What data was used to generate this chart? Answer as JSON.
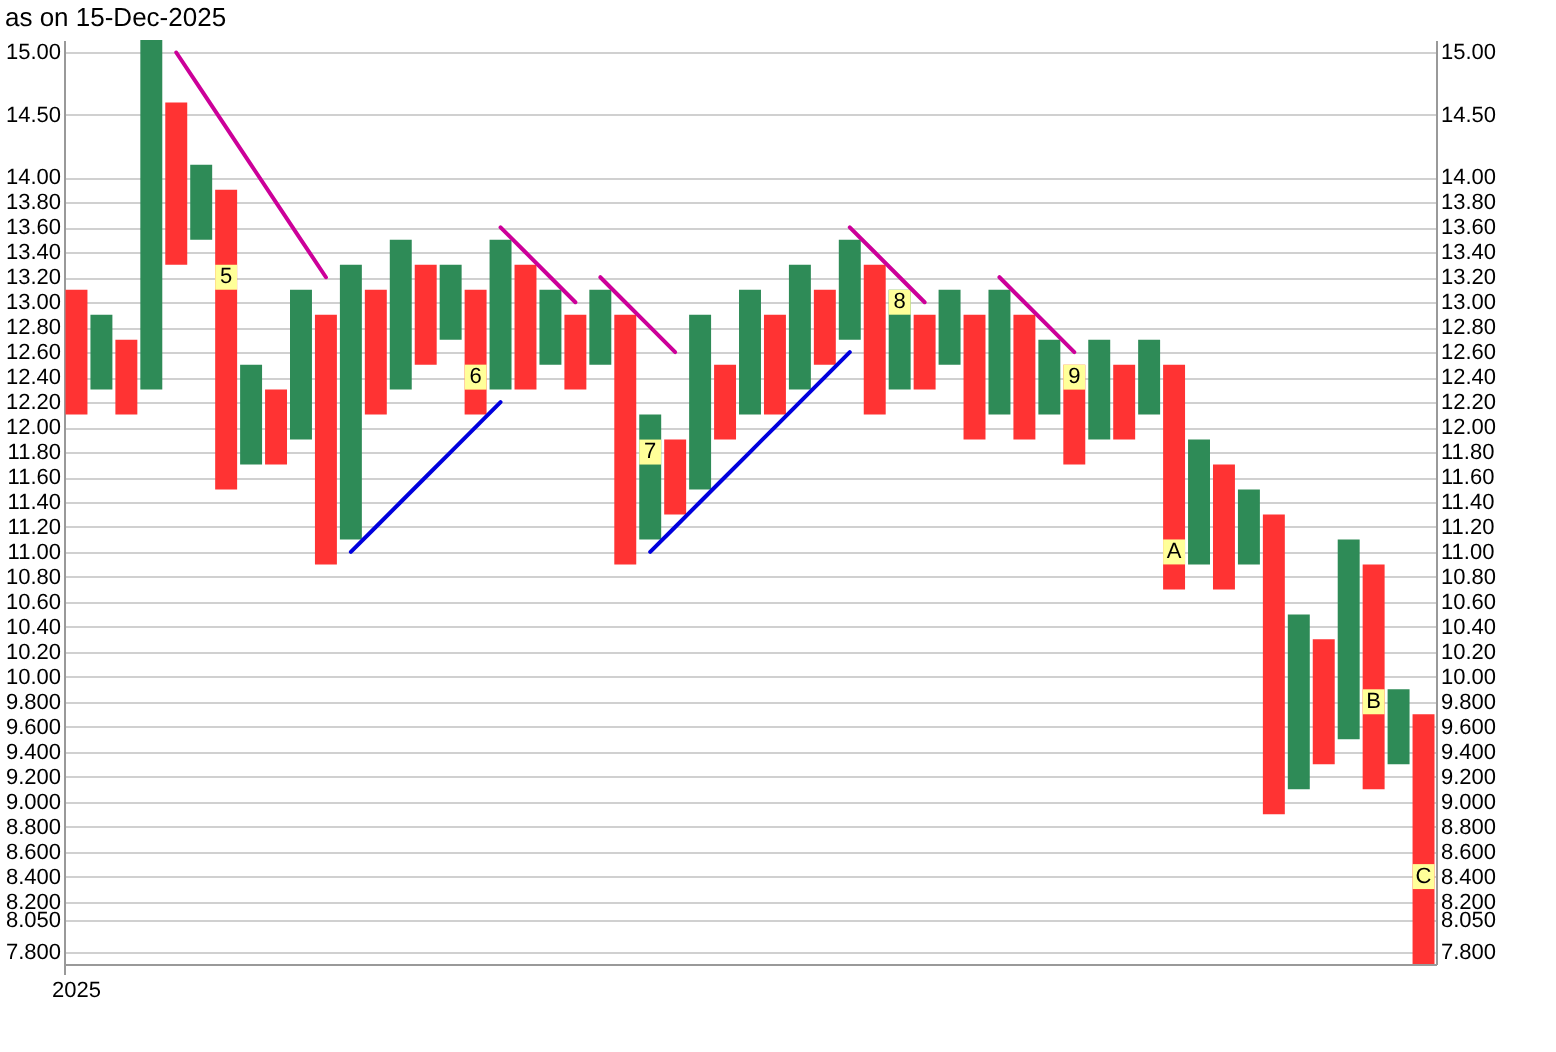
{
  "chart_data": {
    "type": "bar",
    "title": "as on 15-Dec-2025",
    "categories": [
      "2025",
      null,
      null,
      null,
      null,
      null,
      null,
      null,
      null,
      null,
      null,
      null,
      null,
      null,
      null,
      null,
      null,
      null,
      null,
      null,
      null,
      null,
      null,
      null,
      null,
      null,
      null,
      null,
      null,
      null,
      null,
      null,
      null,
      null,
      null,
      null,
      null,
      null,
      null,
      null,
      null,
      null,
      null,
      null,
      null,
      null,
      null,
      null,
      null,
      null,
      null,
      null,
      null,
      null,
      null
    ],
    "ylim": [
      7.7,
      15.1
    ],
    "yticks": [
      {
        "value": 7.8,
        "label": "7.800"
      },
      {
        "value": 8.05,
        "label": "8.050"
      },
      {
        "value": 8.2,
        "label": "8.200"
      },
      {
        "value": 8.4,
        "label": "8.400"
      },
      {
        "value": 8.6,
        "label": "8.600"
      },
      {
        "value": 8.8,
        "label": "8.800"
      },
      {
        "value": 9.0,
        "label": "9.000"
      },
      {
        "value": 9.2,
        "label": "9.200"
      },
      {
        "value": 9.4,
        "label": "9.400"
      },
      {
        "value": 9.6,
        "label": "9.600"
      },
      {
        "value": 9.8,
        "label": "9.800"
      },
      {
        "value": 10.0,
        "label": "10.00"
      },
      {
        "value": 10.2,
        "label": "10.20"
      },
      {
        "value": 10.4,
        "label": "10.40"
      },
      {
        "value": 10.6,
        "label": "10.60"
      },
      {
        "value": 10.8,
        "label": "10.80"
      },
      {
        "value": 11.0,
        "label": "11.00"
      },
      {
        "value": 11.2,
        "label": "11.20"
      },
      {
        "value": 11.4,
        "label": "11.40"
      },
      {
        "value": 11.6,
        "label": "11.60"
      },
      {
        "value": 11.8,
        "label": "11.80"
      },
      {
        "value": 12.0,
        "label": "12.00"
      },
      {
        "value": 12.2,
        "label": "12.20"
      },
      {
        "value": 12.4,
        "label": "12.40"
      },
      {
        "value": 12.6,
        "label": "12.60"
      },
      {
        "value": 12.8,
        "label": "12.80"
      },
      {
        "value": 13.0,
        "label": "13.00"
      },
      {
        "value": 13.2,
        "label": "13.20"
      },
      {
        "value": 13.4,
        "label": "13.40"
      },
      {
        "value": 13.6,
        "label": "13.60"
      },
      {
        "value": 13.8,
        "label": "13.80"
      },
      {
        "value": 14.0,
        "label": "14.00"
      },
      {
        "value": 14.5,
        "label": "14.50"
      },
      {
        "value": 15.0,
        "label": "15.00"
      }
    ],
    "y2lim": [
      7.7,
      15.1
    ],
    "y2ticks": [
      {
        "value": 7.8,
        "label": "7.800"
      },
      {
        "value": 8.05,
        "label": "8.050"
      },
      {
        "value": 8.2,
        "label": "8.200"
      },
      {
        "value": 8.4,
        "label": "8.400"
      },
      {
        "value": 8.6,
        "label": "8.600"
      },
      {
        "value": 8.8,
        "label": "8.800"
      },
      {
        "value": 9.0,
        "label": "9.000"
      },
      {
        "value": 9.2,
        "label": "9.200"
      },
      {
        "value": 9.4,
        "label": "9.400"
      },
      {
        "value": 9.6,
        "label": "9.600"
      },
      {
        "value": 9.8,
        "label": "9.800"
      },
      {
        "value": 10.0,
        "label": "10.00"
      },
      {
        "value": 10.2,
        "label": "10.20"
      },
      {
        "value": 10.4,
        "label": "10.40"
      },
      {
        "value": 10.6,
        "label": "10.60"
      },
      {
        "value": 10.8,
        "label": "10.80"
      },
      {
        "value": 11.0,
        "label": "11.00"
      },
      {
        "value": 11.2,
        "label": "11.20"
      },
      {
        "value": 11.4,
        "label": "11.40"
      },
      {
        "value": 11.6,
        "label": "11.60"
      },
      {
        "value": 11.8,
        "label": "11.80"
      },
      {
        "value": 12.0,
        "label": "12.00"
      },
      {
        "value": 12.2,
        "label": "12.20"
      },
      {
        "value": 12.4,
        "label": "12.40"
      },
      {
        "value": 12.6,
        "label": "12.60"
      },
      {
        "value": 12.8,
        "label": "12.80"
      },
      {
        "value": 13.0,
        "label": "13.00"
      },
      {
        "value": 13.2,
        "label": "13.20"
      },
      {
        "value": 13.4,
        "label": "13.40"
      },
      {
        "value": 13.6,
        "label": "13.60"
      },
      {
        "value": 13.8,
        "label": "13.80"
      },
      {
        "value": 14.0,
        "label": "14.00"
      },
      {
        "value": 14.5,
        "label": "14.50"
      },
      {
        "value": 15.0,
        "label": "15.00"
      }
    ],
    "grid": true,
    "annotations": [
      "5",
      "6",
      "7",
      "8",
      "9",
      "A",
      "B",
      "C"
    ],
    "series": [
      {
        "color": "#2e8b57",
        "base": [
          null,
          12.3,
          null,
          12.3,
          null,
          13.5,
          null,
          11.7,
          null,
          11.9,
          null,
          11.1,
          null,
          12.3,
          null,
          12.7,
          null,
          12.3,
          null,
          12.5,
          null,
          12.5,
          null,
          11.1,
          null,
          11.5,
          null,
          12.1,
          null,
          12.3,
          null,
          12.7,
          null,
          12.3,
          null,
          12.5,
          null,
          12.1,
          null,
          12.1,
          null,
          11.9,
          null,
          12.1,
          null,
          10.9,
          null,
          10.9,
          null,
          9.1,
          null,
          9.5,
          null,
          9.3,
          null
        ],
        "values": [
          null,
          0.6,
          null,
          2.8,
          null,
          0.6,
          null,
          0.8,
          null,
          1.2,
          null,
          2.2,
          null,
          1.2,
          null,
          0.6,
          null,
          1.2,
          null,
          0.6,
          null,
          0.6,
          null,
          1.0,
          null,
          1.4,
          null,
          1.0,
          null,
          1.0,
          null,
          0.8,
          null,
          0.8,
          null,
          0.6,
          null,
          1.0,
          null,
          0.6,
          null,
          0.8,
          null,
          0.6,
          null,
          1.0,
          null,
          0.6,
          null,
          1.4,
          null,
          1.6,
          null,
          0.6,
          null
        ]
      },
      {
        "color": "#ff3333",
        "base": [
          12.1,
          null,
          12.1,
          null,
          13.3,
          null,
          11.5,
          null,
          11.7,
          null,
          10.9,
          null,
          12.1,
          null,
          12.5,
          null,
          12.1,
          null,
          12.3,
          null,
          12.3,
          null,
          10.9,
          null,
          11.3,
          null,
          11.9,
          null,
          12.1,
          null,
          12.5,
          null,
          12.1,
          null,
          12.3,
          null,
          11.9,
          null,
          11.9,
          null,
          11.7,
          null,
          11.9,
          null,
          10.7,
          null,
          10.7,
          null,
          8.9,
          null,
          9.3,
          null,
          9.1,
          null,
          7.7
        ],
        "values": [
          1.0,
          null,
          0.6,
          null,
          1.3,
          null,
          2.4,
          null,
          0.6,
          null,
          2.0,
          null,
          1.0,
          null,
          0.8,
          null,
          1.0,
          null,
          1.0,
          null,
          0.6,
          null,
          2.0,
          null,
          0.6,
          null,
          0.6,
          null,
          0.8,
          null,
          0.6,
          null,
          1.2,
          null,
          0.6,
          null,
          1.0,
          null,
          1.0,
          null,
          0.8,
          null,
          0.6,
          null,
          1.8,
          null,
          1.0,
          null,
          2.4,
          null,
          1.0,
          null,
          1.8,
          null,
          2.0
        ]
      },
      {
        "color": "#ffff99",
        "base": [
          null,
          null,
          null,
          null,
          null,
          null,
          13.1,
          null,
          null,
          null,
          null,
          null,
          null,
          null,
          null,
          null,
          12.3,
          null,
          null,
          null,
          null,
          null,
          null,
          11.7,
          null,
          null,
          null,
          null,
          null,
          null,
          null,
          null,
          null,
          12.9,
          null,
          null,
          null,
          null,
          null,
          null,
          12.3,
          null,
          null,
          null,
          10.9,
          null,
          null,
          null,
          null,
          null,
          null,
          null,
          9.7,
          null,
          8.3
        ],
        "values": [
          null,
          null,
          null,
          null,
          null,
          null,
          0.2,
          null,
          null,
          null,
          null,
          null,
          null,
          null,
          null,
          null,
          0.2,
          null,
          null,
          null,
          null,
          null,
          null,
          0.2,
          null,
          null,
          null,
          null,
          null,
          null,
          null,
          null,
          null,
          0.2,
          null,
          null,
          null,
          null,
          null,
          null,
          0.2,
          null,
          null,
          null,
          0.2,
          null,
          null,
          null,
          null,
          null,
          null,
          null,
          0.2,
          null,
          0.2
        ]
      },
      {
        "type": "line",
        "color": "#cc0099",
        "values": [
          null,
          null,
          null,
          null,
          15.0,
          14.7,
          14.4,
          14.1,
          13.8,
          13.5,
          13.2,
          null,
          null,
          null,
          null,
          null,
          null,
          null,
          null,
          null,
          null,
          null,
          null,
          null,
          null,
          null,
          null,
          null,
          null,
          null,
          null,
          null,
          null,
          null,
          null,
          null,
          null,
          null,
          null,
          null,
          null,
          null,
          null,
          null,
          null,
          null,
          null,
          null,
          null,
          null,
          null,
          null,
          null,
          null,
          null
        ]
      },
      {
        "type": "line",
        "color": "#cc0099",
        "values": [
          null,
          null,
          null,
          null,
          null,
          null,
          null,
          null,
          null,
          null,
          null,
          null,
          null,
          null,
          null,
          null,
          null,
          13.6,
          13.4,
          13.2,
          13.0,
          null,
          null,
          null,
          null,
          null,
          null,
          null,
          null,
          null,
          null,
          null,
          null,
          null,
          null,
          null,
          null,
          null,
          null,
          null,
          null,
          null,
          null,
          null,
          null,
          null,
          null,
          null,
          null,
          null,
          null,
          null,
          null,
          null,
          null
        ]
      },
      {
        "type": "line",
        "color": "#cc0099",
        "values": [
          null,
          null,
          null,
          null,
          null,
          null,
          null,
          null,
          null,
          null,
          null,
          null,
          null,
          null,
          null,
          null,
          null,
          null,
          null,
          null,
          null,
          13.2,
          13.0,
          12.8,
          12.6,
          null,
          null,
          null,
          null,
          null,
          null,
          null,
          null,
          null,
          null,
          null,
          null,
          null,
          null,
          null,
          null,
          null,
          null,
          null,
          null,
          null,
          null,
          null,
          null,
          null,
          null,
          null,
          null,
          null,
          null
        ]
      },
      {
        "type": "line",
        "color": "#cc0099",
        "values": [
          null,
          null,
          null,
          null,
          null,
          null,
          null,
          null,
          null,
          null,
          null,
          null,
          null,
          null,
          null,
          null,
          null,
          null,
          null,
          null,
          null,
          null,
          null,
          null,
          null,
          null,
          null,
          null,
          null,
          null,
          null,
          13.6,
          13.4,
          13.2,
          13.0,
          null,
          null,
          null,
          null,
          null,
          null,
          null,
          null,
          null,
          null,
          null,
          null,
          null,
          null,
          null,
          null,
          null,
          null,
          null,
          null
        ]
      },
      {
        "type": "line",
        "color": "#cc0099",
        "values": [
          null,
          null,
          null,
          null,
          null,
          null,
          null,
          null,
          null,
          null,
          null,
          null,
          null,
          null,
          null,
          null,
          null,
          null,
          null,
          null,
          null,
          null,
          null,
          null,
          null,
          null,
          null,
          null,
          null,
          null,
          null,
          null,
          null,
          null,
          null,
          null,
          null,
          13.2,
          13.0,
          12.8,
          12.6,
          null,
          null,
          null,
          null,
          null,
          null,
          null,
          null,
          null,
          null,
          null,
          null,
          null,
          null
        ]
      },
      {
        "type": "line",
        "color": "#0000dd",
        "values": [
          null,
          null,
          null,
          null,
          null,
          null,
          null,
          null,
          null,
          null,
          null,
          11.0,
          11.2,
          11.4,
          11.6,
          11.8,
          12.0,
          12.2,
          null,
          null,
          null,
          null,
          null,
          null,
          null,
          null,
          null,
          null,
          null,
          null,
          null,
          null,
          null,
          null,
          null,
          null,
          null,
          null,
          null,
          null,
          null,
          null,
          null,
          null,
          null,
          null,
          null,
          null,
          null,
          null,
          null,
          null,
          null,
          null,
          null
        ]
      },
      {
        "type": "line",
        "color": "#0000dd",
        "values": [
          null,
          null,
          null,
          null,
          null,
          null,
          null,
          null,
          null,
          null,
          null,
          null,
          null,
          null,
          null,
          null,
          null,
          null,
          null,
          null,
          null,
          null,
          null,
          11.0,
          11.2,
          11.4,
          11.6,
          11.8,
          12.0,
          12.2,
          12.4,
          12.6,
          null,
          null,
          null,
          null,
          null,
          null,
          null,
          null,
          null,
          null,
          null,
          null,
          null,
          null,
          null,
          null,
          null,
          null,
          null,
          null,
          null,
          null,
          null
        ]
      }
    ]
  }
}
